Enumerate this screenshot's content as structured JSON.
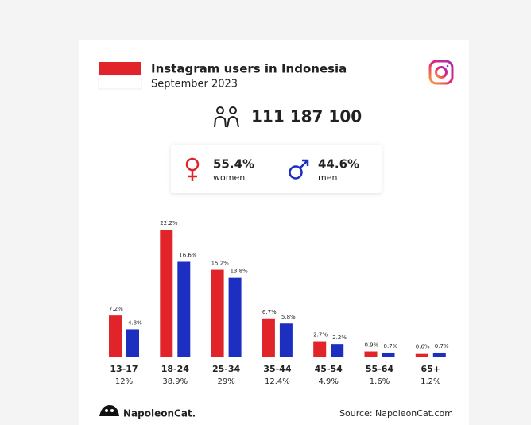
{
  "chart_data": {
    "type": "bar",
    "title": "Instagram users in Indonesia",
    "subtitle": "September 2023",
    "total_users": {
      "value": 111187100,
      "label": "111 187 100"
    },
    "gender": [
      {
        "name": "women",
        "value": 55.4,
        "label": "55.4%",
        "color": "#e0242a"
      },
      {
        "name": "men",
        "value": 44.6,
        "label": "44.6%",
        "color": "#1d2fc0"
      }
    ],
    "categories": [
      "13-17",
      "18-24",
      "25-34",
      "35-44",
      "45-54",
      "55-64",
      "65+"
    ],
    "shares": [
      12,
      38.9,
      29,
      12.4,
      4.9,
      1.6,
      1.2
    ],
    "share_labels": [
      "12%",
      "38.9%",
      "29%",
      "12.4%",
      "4.9%",
      "1.6%",
      "1.2%"
    ],
    "series": [
      {
        "name": "women",
        "color": "#e0242a",
        "values": [
          7.2,
          22.2,
          15.2,
          6.7,
          2.7,
          0.9,
          0.6
        ],
        "value_labels": [
          "7.2%",
          "22.2%",
          "15.2%",
          "6.7%",
          "2.7%",
          "0.9%",
          "0.6%"
        ]
      },
      {
        "name": "men",
        "color": "#1d2fc0",
        "values": [
          4.8,
          16.6,
          13.8,
          5.8,
          2.2,
          0.7,
          0.7
        ],
        "value_labels": [
          "4.8%",
          "16.6%",
          "13.8%",
          "5.8%",
          "2.2%",
          "0.7%",
          "0.7%"
        ]
      }
    ],
    "brand": "NapoleonCat.",
    "source": "Source: NapoleonCat.com"
  }
}
